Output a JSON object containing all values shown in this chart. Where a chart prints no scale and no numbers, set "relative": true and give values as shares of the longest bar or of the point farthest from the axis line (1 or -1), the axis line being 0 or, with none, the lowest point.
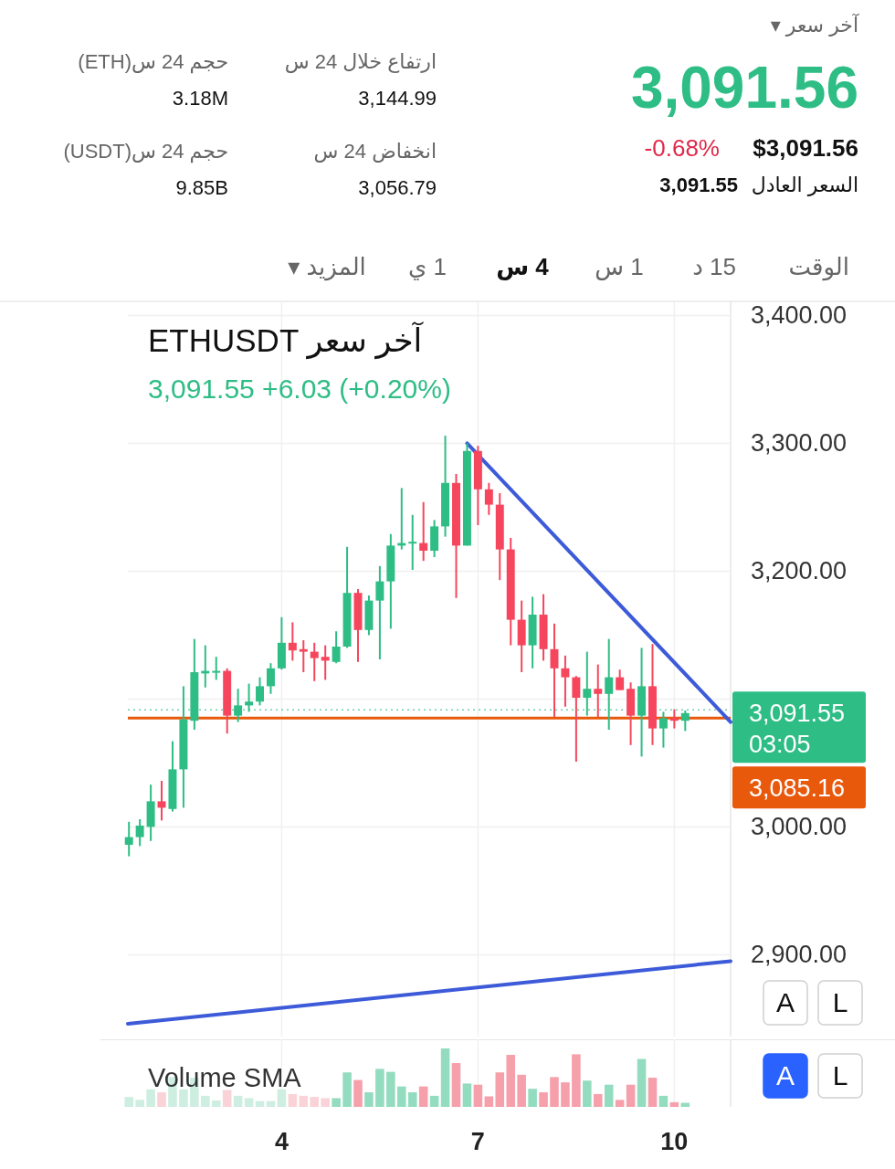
{
  "chart_data": [
    {
      "type": "other",
      "annotations": [
        "آخر سعر ▾",
        "3,091.56",
        "-0.68%",
        "$3,091.56",
        "السعر العادل",
        "3,091.55",
        "ارتفاع خلال 24 س",
        "3,144.99",
        "انخفاض 24 س",
        "3,056.79",
        "حجم 24 س(ETH)",
        "3.18M",
        "حجم 24 س(USDT)",
        "9.85B",
        "الوقت",
        "15 د",
        "1 س",
        "4 س",
        "1 ي",
        "المزيد ▾",
        "A",
        "L",
        "A",
        "L"
      ]
    },
    {
      "type": "candlestick",
      "title": "ETHUSDT آخر سعر",
      "subtitle": "3,091.55  +6.03 (+0.20%)",
      "grid": true,
      "tick_labels": "y",
      "x": [
        1.6667,
        1.8333,
        2,
        2.1667,
        2.3333,
        2.5,
        2.6667,
        2.8333,
        3,
        3.1667,
        3.3333,
        3.5,
        3.6667,
        3.8333,
        4,
        4.1667,
        4.3333,
        4.5,
        4.6667,
        4.8333,
        5,
        5.1667,
        5.3333,
        5.5,
        5.6667,
        5.8333,
        6,
        6.1667,
        6.3333,
        6.5,
        6.6667,
        6.8333,
        7,
        7.1667,
        7.3333,
        7.5,
        7.6667,
        7.8333,
        8,
        8.1667,
        8.3333,
        8.5,
        8.6667,
        8.8333,
        9,
        9.1667,
        9.3333,
        9.5,
        9.6667,
        9.8333,
        10,
        10.1667
      ],
      "ohlc": [
        [
          2986,
          3004,
          2977,
          2992
        ],
        [
          2992,
          3006,
          2985,
          3001
        ],
        [
          3000,
          3033,
          2989,
          3020
        ],
        [
          3020,
          3036,
          3005,
          3015
        ],
        [
          3014,
          3067,
          3012,
          3045
        ],
        [
          3045,
          3110,
          3015,
          3084
        ],
        [
          3083,
          3147,
          3076,
          3121
        ],
        [
          3120,
          3142,
          3109,
          3122
        ],
        [
          3121,
          3133,
          3115,
          3122
        ],
        [
          3122,
          3124,
          3073,
          3087
        ],
        [
          3087,
          3108,
          3082,
          3095
        ],
        [
          3095,
          3112,
          3090,
          3098
        ],
        [
          3098,
          3117,
          3095,
          3110
        ],
        [
          3110,
          3128,
          3104,
          3124
        ],
        [
          3124,
          3164,
          3123,
          3144
        ],
        [
          3144,
          3160,
          3130,
          3138
        ],
        [
          3139,
          3146,
          3121,
          3137
        ],
        [
          3137,
          3144,
          3114,
          3132
        ],
        [
          3133,
          3142,
          3115,
          3130
        ],
        [
          3129,
          3153,
          3128,
          3141
        ],
        [
          3141,
          3219,
          3140,
          3183
        ],
        [
          3183,
          3186,
          3129,
          3154
        ],
        [
          3154,
          3181,
          3150,
          3177
        ],
        [
          3177,
          3204,
          3131,
          3192
        ],
        [
          3192,
          3229,
          3155,
          3220
        ],
        [
          3220,
          3265,
          3217,
          3222
        ],
        [
          3222,
          3244,
          3201,
          3223
        ],
        [
          3222,
          3254,
          3208,
          3216
        ],
        [
          3216,
          3240,
          3211,
          3235
        ],
        [
          3235,
          3306,
          3227,
          3269
        ],
        [
          3269,
          3276,
          3179,
          3220
        ],
        [
          3220,
          3300,
          3220,
          3294
        ],
        [
          3294,
          3298,
          3236,
          3264
        ],
        [
          3264,
          3269,
          3244,
          3252
        ],
        [
          3252,
          3261,
          3193,
          3217
        ],
        [
          3217,
          3226,
          3142,
          3162
        ],
        [
          3162,
          3177,
          3121,
          3142
        ],
        [
          3142,
          3180,
          3124,
          3166
        ],
        [
          3166,
          3182,
          3130,
          3139
        ],
        [
          3139,
          3159,
          3086,
          3124
        ],
        [
          3124,
          3134,
          3094,
          3117
        ],
        [
          3117,
          3118,
          3051,
          3101
        ],
        [
          3101,
          3137,
          3087,
          3108
        ],
        [
          3108,
          3127,
          3086,
          3104
        ],
        [
          3104,
          3147,
          3076,
          3117
        ],
        [
          3117,
          3123,
          3107,
          3107
        ],
        [
          3108,
          3113,
          3064,
          3087
        ],
        [
          3087,
          3140,
          3055,
          3110
        ],
        [
          3110,
          3143,
          3064,
          3077
        ],
        [
          3077,
          3090,
          3062,
          3085
        ],
        [
          3085,
          3092,
          3077,
          3083
        ],
        [
          3083,
          3091,
          3075,
          3089
        ]
      ],
      "colors": [
        "#2ebd85",
        "#2ebd85",
        "#2ebd85",
        "#f6465d",
        "#2ebd85",
        "#2ebd85",
        "#2ebd85",
        "#2ebd85",
        "#2ebd85",
        "#f6465d",
        "#2ebd85",
        "#2ebd85",
        "#2ebd85",
        "#2ebd85",
        "#2ebd85",
        "#f6465d",
        "#f6465d",
        "#f6465d",
        "#f6465d",
        "#2ebd85",
        "#2ebd85",
        "#f6465d",
        "#2ebd85",
        "#2ebd85",
        "#2ebd85",
        "#2ebd85",
        "#2ebd85",
        "#f6465d",
        "#2ebd85",
        "#2ebd85",
        "#f6465d",
        "#2ebd85",
        "#f6465d",
        "#f6465d",
        "#f6465d",
        "#f6465d",
        "#f6465d",
        "#2ebd85",
        "#f6465d",
        "#f6465d",
        "#f6465d",
        "#f6465d",
        "#2ebd85",
        "#f6465d",
        "#2ebd85",
        "#f6465d",
        "#f6465d",
        "#2ebd85",
        "#f6465d",
        "#2ebd85",
        "#f6465d",
        "#2ebd85"
      ],
      "series": [
        {
          "type": "line",
          "color": "#3d5bd9",
          "x": [
            6.8333,
            10.86
          ],
          "values": [
            3300,
            3082
          ]
        },
        {
          "type": "line",
          "color": "#3d5bd9",
          "x": [
            1.65,
            10.86
          ],
          "values": [
            2846,
            2895
          ]
        }
      ],
      "ref_lines": [
        {
          "axis": "y",
          "value": 3091.55,
          "label": "3,091.55\n03:05",
          "color": "#2ebd85",
          "line_style": "dotted"
        },
        {
          "axis": "y",
          "value": 3085.16,
          "label": "3,085.16",
          "color": "#e8590c",
          "line_style": "solid"
        }
      ],
      "xlim": [
        1.65,
        10.86
      ],
      "xticks": [
        4,
        7,
        10
      ],
      "ylim": [
        2836,
        3411
      ],
      "yticks": [
        {
          "value": 2900,
          "label": "2,900.00"
        },
        {
          "value": 3000,
          "label": "3,000.00"
        },
        {
          "value": 3100,
          "label": null
        },
        {
          "value": 3200,
          "label": "3,200.00"
        },
        {
          "value": 3300,
          "label": "3,300.00"
        },
        {
          "value": 3400,
          "label": "3,400.00"
        }
      ]
    },
    {
      "type": "bar",
      "title": "Volume SMA",
      "relative": true,
      "tick_labels": "x",
      "grid": "x",
      "x": [
        1.6667,
        1.8333,
        2,
        2.1667,
        2.3333,
        2.5,
        2.6667,
        2.8333,
        3,
        3.1667,
        3.3333,
        3.5,
        3.6667,
        3.8333,
        4,
        4.1667,
        4.3333,
        4.5,
        4.6667,
        4.8333,
        5,
        5.1667,
        5.3333,
        5.5,
        5.6667,
        5.8333,
        6,
        6.1667,
        6.3333,
        6.5,
        6.6667,
        6.8333,
        7,
        7.1667,
        7.3333,
        7.5,
        7.6667,
        7.8333,
        8,
        8.1667,
        8.3333,
        8.5,
        8.6667,
        8.8333,
        9,
        9.1667,
        9.3333,
        9.5,
        9.6667,
        9.8333,
        10,
        10.1667
      ],
      "values": [
        0.17,
        0.12,
        0.3,
        0.25,
        0.51,
        0.3,
        0.5,
        0.19,
        0.11,
        0.29,
        0.19,
        0.15,
        0.1,
        0.1,
        0.3,
        0.22,
        0.19,
        0.17,
        0.15,
        0.15,
        0.59,
        0.46,
        0.25,
        0.65,
        0.6,
        0.35,
        0.25,
        0.35,
        0.19,
        1,
        0.75,
        0.4,
        0.38,
        0.18,
        0.59,
        0.89,
        0.55,
        0.31,
        0.25,
        0.51,
        0.42,
        0.9,
        0.45,
        0.22,
        0.38,
        0.12,
        0.38,
        0.82,
        0.5,
        0.19,
        0.08,
        0.07
      ],
      "colors": [
        "#cdeee1",
        "#cdeee1",
        "#cdeee1",
        "#fad3d8",
        "#cdeee1",
        "#cdeee1",
        "#cdeee1",
        "#cdeee1",
        "#cdeee1",
        "#fad3d8",
        "#cdeee1",
        "#cdeee1",
        "#cdeee1",
        "#cdeee1",
        "#cdeee1",
        "#fad3d8",
        "#fad3d8",
        "#fad3d8",
        "#fad3d8",
        "#93dcc0",
        "#93dcc0",
        "#f5a0ab",
        "#93dcc0",
        "#93dcc0",
        "#93dcc0",
        "#93dcc0",
        "#93dcc0",
        "#f5a0ab",
        "#93dcc0",
        "#93dcc0",
        "#f5a0ab",
        "#93dcc0",
        "#f5a0ab",
        "#f5a0ab",
        "#f5a0ab",
        "#f5a0ab",
        "#f5a0ab",
        "#93dcc0",
        "#f5a0ab",
        "#f5a0ab",
        "#f5a0ab",
        "#f5a0ab",
        "#93dcc0",
        "#f5a0ab",
        "#93dcc0",
        "#f5a0ab",
        "#f5a0ab",
        "#93dcc0",
        "#f5a0ab",
        "#93dcc0",
        "#f5a0ab",
        "#93dcc0"
      ],
      "xlim": [
        1.65,
        10.86
      ],
      "xticks": [
        4,
        7,
        10
      ]
    }
  ]
}
